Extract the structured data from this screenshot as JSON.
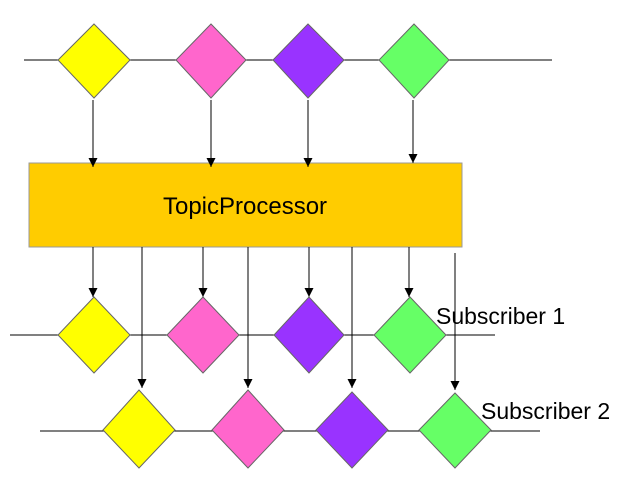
{
  "processor": {
    "label": "TopicProcessor",
    "color": "#FFCC00"
  },
  "subscribers": [
    {
      "label": "Subscriber 1"
    },
    {
      "label": "Subscriber 2"
    }
  ],
  "item_colors": [
    "#FFFF00",
    "#FF66CC",
    "#9933FF",
    "#66FF66"
  ],
  "item_color_names": [
    "yellow",
    "pink",
    "purple",
    "green"
  ],
  "line_color": "#000000"
}
